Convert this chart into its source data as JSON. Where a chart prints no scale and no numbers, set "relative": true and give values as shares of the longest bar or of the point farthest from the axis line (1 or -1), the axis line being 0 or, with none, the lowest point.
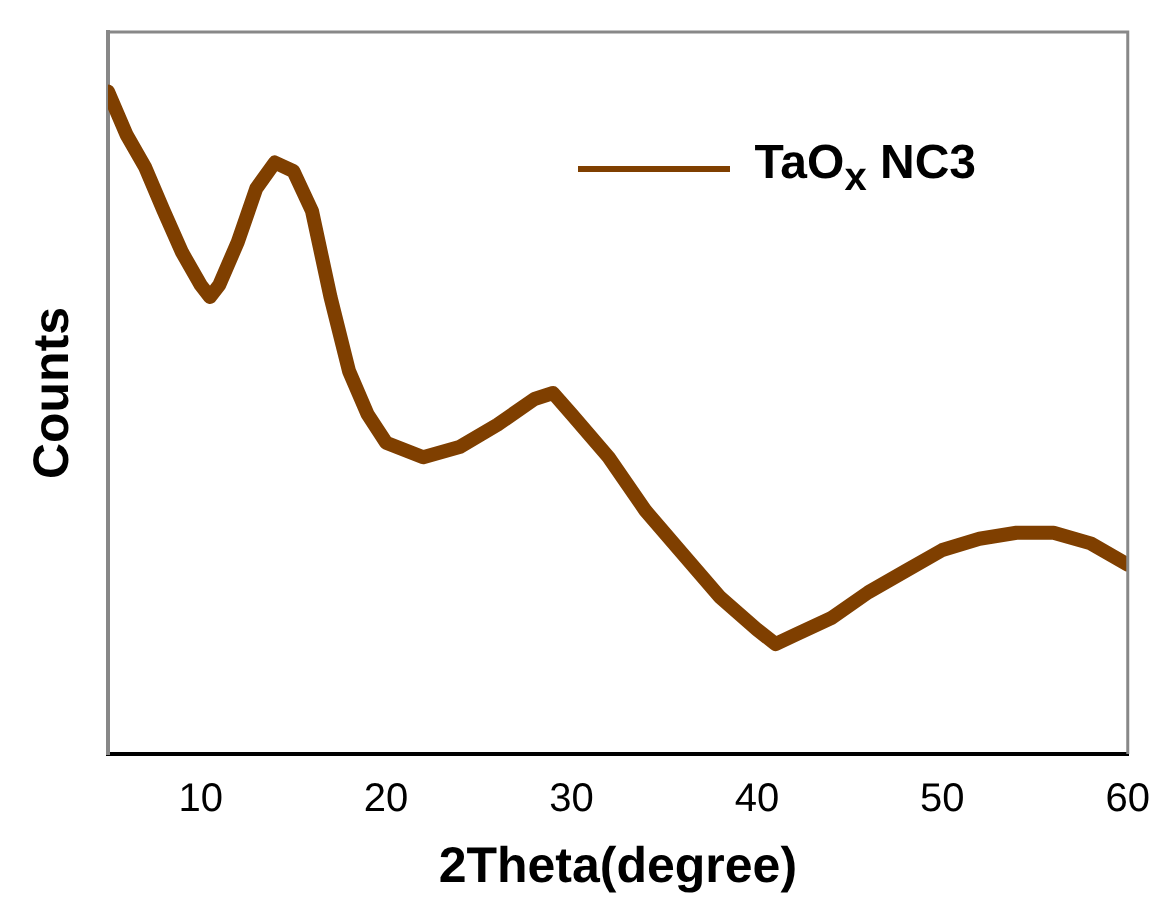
{
  "chart_data": {
    "type": "line",
    "xlabel": "2Theta(degree)",
    "ylabel": "Counts",
    "relative": true,
    "xlim": [
      5,
      60
    ],
    "xticks": [
      10,
      20,
      30,
      40,
      50,
      60
    ],
    "grid": false,
    "legend": "top right",
    "marker": "none",
    "line_style": "solid",
    "series": [
      {
        "name": "TaO$_{x}$ NC3",
        "color": "#7f3f00",
        "x": [
          5,
          6,
          7,
          8,
          9,
          10,
          10.5,
          11,
          12,
          13,
          14,
          15,
          16,
          17,
          18,
          19,
          20,
          22,
          24,
          26,
          28,
          29,
          30,
          32,
          34,
          36,
          38,
          40,
          41,
          42,
          44,
          46,
          48,
          50,
          52,
          54,
          56,
          58,
          60
        ],
        "values": [
          1.0,
          0.935,
          0.886,
          0.82,
          0.757,
          0.708,
          0.69,
          0.708,
          0.773,
          0.854,
          0.893,
          0.88,
          0.82,
          0.69,
          0.578,
          0.513,
          0.47,
          0.448,
          0.464,
          0.497,
          0.536,
          0.545,
          0.513,
          0.448,
          0.367,
          0.302,
          0.237,
          0.188,
          0.166,
          0.179,
          0.205,
          0.244,
          0.276,
          0.308,
          0.325,
          0.334,
          0.334,
          0.318,
          0.286
        ]
      }
    ]
  }
}
